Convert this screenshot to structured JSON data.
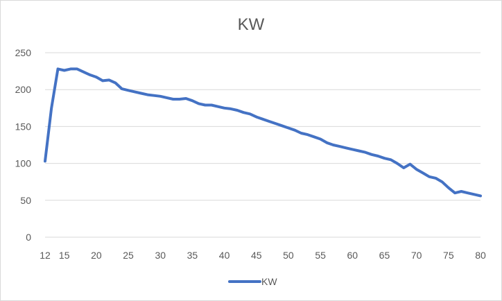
{
  "chart_data": {
    "type": "line",
    "title": "KW",
    "xlabel": "",
    "ylabel": "",
    "xlim": [
      12,
      80
    ],
    "ylim": [
      0,
      250
    ],
    "x_ticks": [
      "12",
      "15",
      "20",
      "25",
      "30",
      "35",
      "40",
      "45",
      "50",
      "55",
      "60",
      "65",
      "70",
      "75",
      "80"
    ],
    "y_ticks": [
      "0",
      "50",
      "100",
      "150",
      "200",
      "250"
    ],
    "grid": true,
    "legend": "bottom",
    "color": "#4472c4",
    "series": [
      {
        "name": "KW",
        "x": [
          12,
          13,
          14,
          15,
          16,
          17,
          18,
          19,
          20,
          21,
          22,
          23,
          24,
          25,
          26,
          27,
          28,
          29,
          30,
          31,
          32,
          33,
          34,
          35,
          36,
          37,
          38,
          39,
          40,
          41,
          42,
          43,
          44,
          45,
          46,
          47,
          48,
          49,
          50,
          51,
          52,
          53,
          54,
          55,
          56,
          57,
          58,
          59,
          60,
          61,
          62,
          63,
          64,
          65,
          66,
          67,
          68,
          69,
          70,
          71,
          72,
          73,
          74,
          75,
          76,
          77,
          78,
          79,
          80
        ],
        "values": [
          103,
          175,
          228,
          226,
          228,
          228,
          224,
          220,
          217,
          212,
          213,
          209,
          201,
          199,
          197,
          195,
          193,
          192,
          191,
          189,
          187,
          187,
          188,
          185,
          181,
          179,
          179,
          177,
          175,
          174,
          172,
          169,
          167,
          163,
          160,
          157,
          154,
          151,
          148,
          145,
          141,
          139,
          136,
          133,
          128,
          125,
          123,
          121,
          119,
          117,
          115,
          112,
          110,
          107,
          105,
          100,
          94,
          99,
          92,
          87,
          82,
          80,
          75,
          67,
          60,
          62,
          60,
          58,
          56
        ]
      }
    ]
  }
}
